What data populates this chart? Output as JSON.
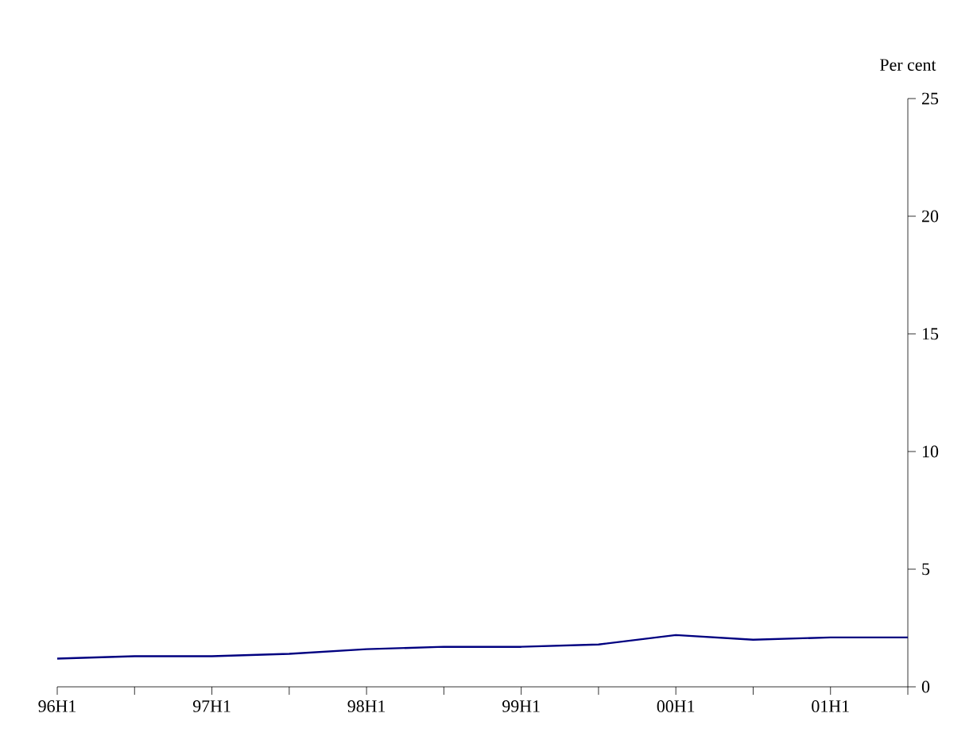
{
  "chart_data": {
    "type": "line",
    "ylabel": "Per cent",
    "categories": [
      "96H1",
      null,
      "97H1",
      null,
      "98H1",
      null,
      "99H1",
      null,
      "00H1",
      null,
      "01H1",
      null
    ],
    "series": [
      {
        "color": "#000080",
        "values": [
          1.2,
          1.3,
          1.3,
          1.4,
          1.6,
          1.7,
          1.7,
          1.8,
          2.2,
          2.0,
          2.1,
          2.1
        ]
      }
    ],
    "ylim": [
      0,
      25
    ],
    "yticks": [
      0,
      5,
      10,
      15,
      20,
      25
    ],
    "grid": false,
    "marker": "none",
    "line_style": "solid"
  }
}
